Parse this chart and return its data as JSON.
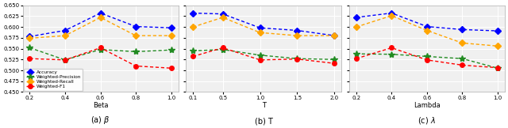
{
  "plots": [
    {
      "xlabel": "Beta",
      "caption": "(a) $\\beta$",
      "x": [
        0.2,
        0.4,
        0.6,
        0.8,
        1.0
      ],
      "accuracy": [
        0.578,
        0.592,
        0.632,
        0.601,
        0.598
      ],
      "weighted_precision": [
        0.552,
        0.524,
        0.548,
        0.543,
        0.547
      ],
      "weighted_recall": [
        0.574,
        0.58,
        0.622,
        0.58,
        0.58
      ],
      "weighted_f1": [
        0.527,
        0.524,
        0.552,
        0.51,
        0.505
      ]
    },
    {
      "xlabel": "T",
      "caption": "(b) T",
      "x": [
        0.1,
        0.5,
        1.0,
        1.5,
        2.0
      ],
      "accuracy": [
        0.632,
        0.63,
        0.598,
        0.592,
        0.58
      ],
      "weighted_precision": [
        0.545,
        0.548,
        0.535,
        0.527,
        0.525
      ],
      "weighted_recall": [
        0.6,
        0.622,
        0.587,
        0.58,
        0.58
      ],
      "weighted_f1": [
        0.532,
        0.552,
        0.524,
        0.526,
        0.516
      ]
    },
    {
      "xlabel": "Lambda",
      "caption": "(c) $\\lambda$",
      "x": [
        0.2,
        0.4,
        0.6,
        0.8,
        1.0
      ],
      "accuracy": [
        0.622,
        0.632,
        0.601,
        0.594,
        0.591
      ],
      "weighted_precision": [
        0.538,
        0.537,
        0.532,
        0.527,
        0.505
      ],
      "weighted_recall": [
        0.6,
        0.626,
        0.592,
        0.563,
        0.556
      ],
      "weighted_f1": [
        0.527,
        0.552,
        0.524,
        0.512,
        0.506
      ]
    }
  ],
  "colors": {
    "accuracy": "#0000FF",
    "weighted_precision": "#228B22",
    "weighted_recall": "#FFA500",
    "weighted_f1": "#FF0000"
  },
  "markers": {
    "accuracy": "D",
    "weighted_precision": "*",
    "weighted_recall": "D",
    "weighted_f1": "o"
  },
  "marker_sizes": {
    "accuracy": 4,
    "weighted_precision": 6,
    "weighted_recall": 4,
    "weighted_f1": 4
  },
  "legend_labels": [
    "Accuracy",
    "Weighted-Precision",
    "Weighted-Recall",
    "Weighted-F1"
  ],
  "ylim": [
    0.45,
    0.65
  ],
  "yticks": [
    0.45,
    0.475,
    0.5,
    0.525,
    0.55,
    0.575,
    0.6,
    0.625,
    0.65
  ],
  "background_color": "#f0f0f0"
}
